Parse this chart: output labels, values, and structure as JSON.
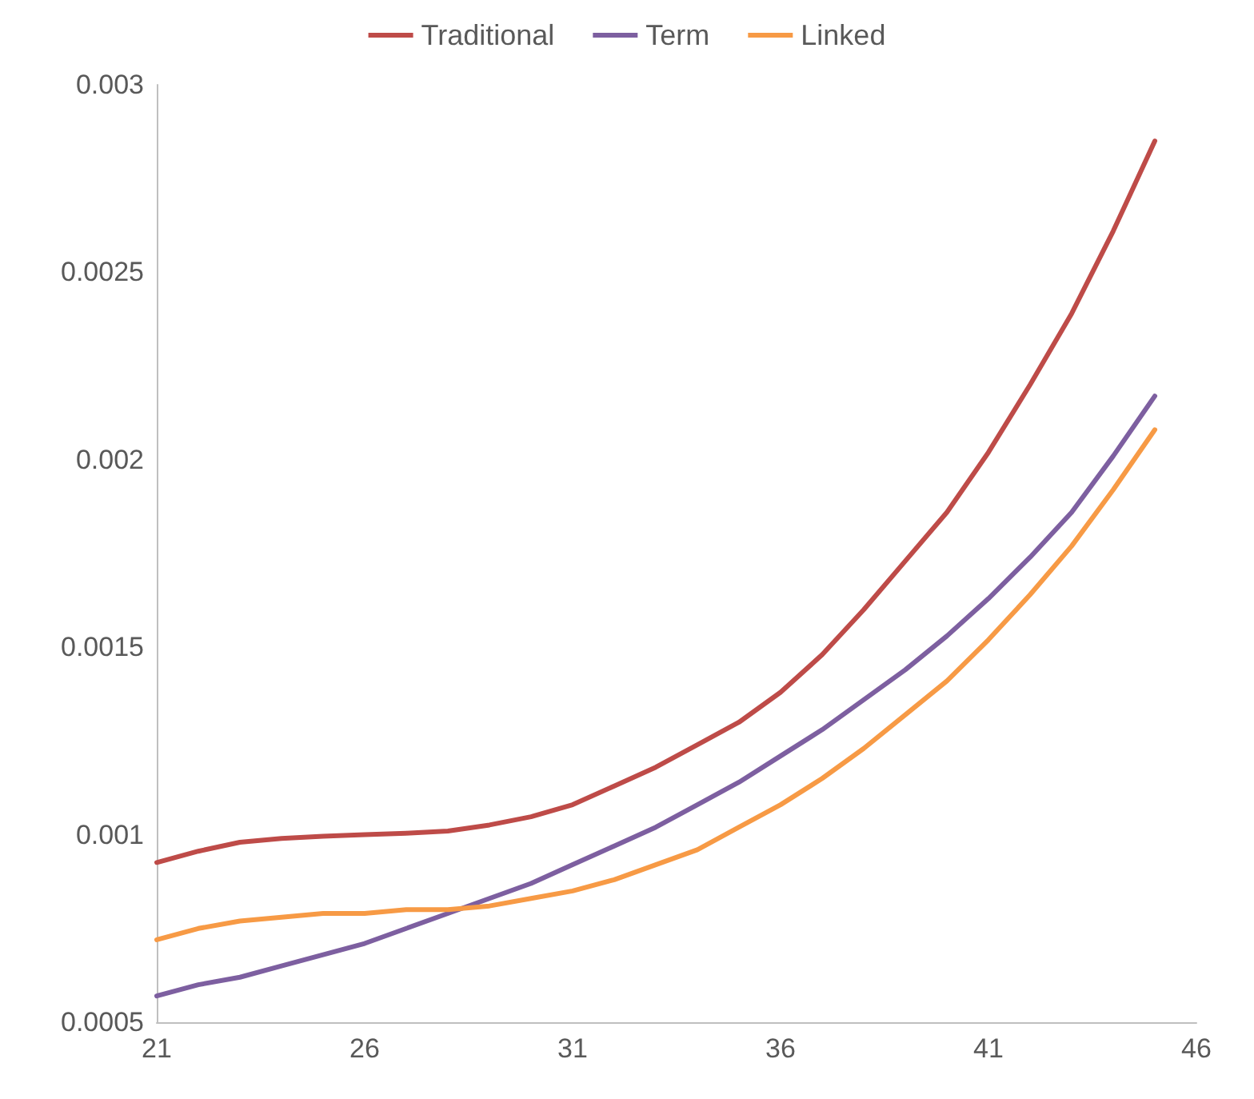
{
  "chart_data": {
    "type": "line",
    "x": [
      21,
      22,
      23,
      24,
      25,
      26,
      27,
      28,
      29,
      30,
      31,
      32,
      33,
      34,
      35,
      36,
      37,
      38,
      39,
      40,
      41,
      42,
      43,
      44,
      45
    ],
    "series": [
      {
        "name": "Traditional",
        "color": "#be4b48",
        "values": [
          0.000926,
          0.000956,
          0.00098,
          0.00099,
          0.000996,
          0.001,
          0.001004,
          0.00101,
          0.001026,
          0.001048,
          0.00108,
          0.00113,
          0.00118,
          0.00124,
          0.0013,
          0.00138,
          0.00148,
          0.0016,
          0.00173,
          0.00186,
          0.00202,
          0.0022,
          0.00239,
          0.00261,
          0.00285
        ]
      },
      {
        "name": "Term",
        "color": "#7d5fa0",
        "values": [
          0.00057,
          0.0006,
          0.00062,
          0.00065,
          0.00068,
          0.00071,
          0.00075,
          0.00079,
          0.00083,
          0.00087,
          0.00092,
          0.00097,
          0.00102,
          0.00108,
          0.00114,
          0.00121,
          0.00128,
          0.00136,
          0.00144,
          0.00153,
          0.00163,
          0.00174,
          0.00186,
          0.00201,
          0.00217
        ]
      },
      {
        "name": "Linked",
        "color": "#f79a45",
        "values": [
          0.00072,
          0.00075,
          0.00077,
          0.00078,
          0.00079,
          0.00079,
          0.0008,
          0.0008,
          0.00081,
          0.00083,
          0.00085,
          0.00088,
          0.00092,
          0.00096,
          0.00102,
          0.00108,
          0.00115,
          0.00123,
          0.00132,
          0.00141,
          0.00152,
          0.00164,
          0.00177,
          0.00192,
          0.00208
        ]
      }
    ],
    "xlim": [
      21,
      46
    ],
    "xticks": [
      21,
      26,
      31,
      36,
      41,
      46
    ],
    "ylim": [
      0.0005,
      0.003
    ],
    "yticks": [
      0.0005,
      0.001,
      0.0015,
      0.002,
      0.0025,
      0.003
    ],
    "grid": false,
    "legend": "top",
    "marker": "none",
    "line_style": "solid"
  }
}
